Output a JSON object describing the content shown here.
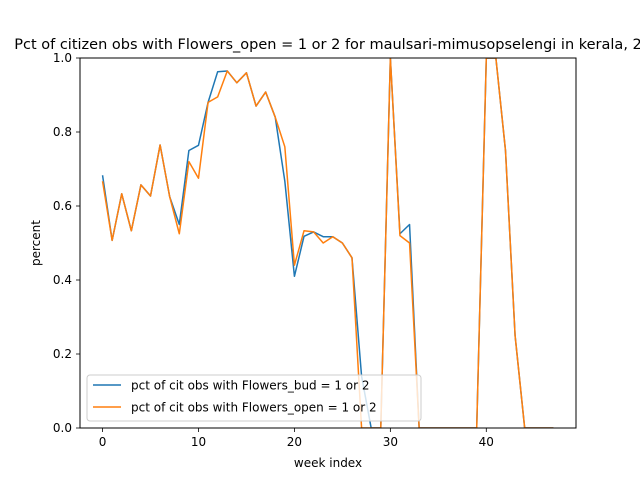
{
  "chart_data": {
    "type": "line",
    "title": "Pct of citizen obs with Flowers_open = 1 or 2 for maulsari-mimusopselengi in kerala, 2",
    "xlabel": "week index",
    "ylabel": "percent",
    "xlim": [
      -2.35,
      49.35
    ],
    "ylim": [
      0,
      1.0
    ],
    "xticks": [
      0,
      10,
      20,
      30,
      40
    ],
    "yticks": [
      0.0,
      0.2,
      0.4,
      0.6,
      0.8,
      1.0
    ],
    "xtick_labels": [
      "0",
      "10",
      "20",
      "30",
      "40"
    ],
    "ytick_labels": [
      "0.0",
      "0.2",
      "0.4",
      "0.6",
      "0.8",
      "1.0"
    ],
    "grid": false,
    "legend_position": "lower-left",
    "series": [
      {
        "name": "pct of cit obs with Flowers_bud = 1 or 2",
        "color": "#1f77b4",
        "x": [
          0,
          1,
          2,
          3,
          4,
          5,
          6,
          7,
          8,
          9,
          10,
          11,
          12,
          13,
          14,
          15,
          16,
          17,
          18,
          19,
          20,
          21,
          22,
          23,
          24,
          25,
          26,
          27,
          28,
          29,
          30,
          31,
          32,
          33,
          34,
          35,
          36,
          37,
          38,
          39,
          40,
          41,
          42,
          43,
          44,
          45,
          46,
          47
        ],
        "y": [
          0.683,
          0.507,
          0.633,
          0.533,
          0.657,
          0.627,
          0.765,
          0.625,
          0.55,
          0.75,
          0.764,
          0.88,
          0.963,
          0.965,
          0.933,
          0.96,
          0.87,
          0.908,
          0.84,
          0.667,
          0.41,
          0.518,
          0.53,
          0.517,
          0.517,
          0.5,
          0.46,
          0.14,
          0.0,
          0.0,
          1.0,
          0.525,
          0.55,
          0.0,
          0.0,
          0.0,
          0.0,
          0.0,
          0.0,
          0.0,
          1.0,
          1.0,
          0.75,
          0.25,
          0.0,
          0.0,
          0.0,
          0.0
        ]
      },
      {
        "name": "pct of cit obs with Flowers_open = 1 or 2",
        "color": "#ff7f0e",
        "x": [
          0,
          1,
          2,
          3,
          4,
          5,
          6,
          7,
          8,
          9,
          10,
          11,
          12,
          13,
          14,
          15,
          16,
          17,
          18,
          19,
          20,
          21,
          22,
          23,
          24,
          25,
          26,
          27,
          28,
          29,
          30,
          31,
          32,
          33,
          34,
          35,
          36,
          37,
          38,
          39,
          40,
          41,
          42,
          43,
          44,
          45,
          46,
          47
        ],
        "y": [
          0.667,
          0.507,
          0.633,
          0.533,
          0.657,
          0.627,
          0.765,
          0.625,
          0.525,
          0.72,
          0.675,
          0.88,
          0.895,
          0.965,
          0.933,
          0.96,
          0.87,
          0.908,
          0.84,
          0.76,
          0.44,
          0.533,
          0.53,
          0.5,
          0.517,
          0.5,
          0.46,
          0.0,
          0.0,
          0.0,
          1.0,
          0.52,
          0.5,
          0.0,
          0.0,
          0.0,
          0.0,
          0.0,
          0.0,
          0.0,
          1.0,
          1.0,
          0.75,
          0.25,
          0.0,
          0.0,
          0.0,
          0.0
        ]
      }
    ]
  }
}
